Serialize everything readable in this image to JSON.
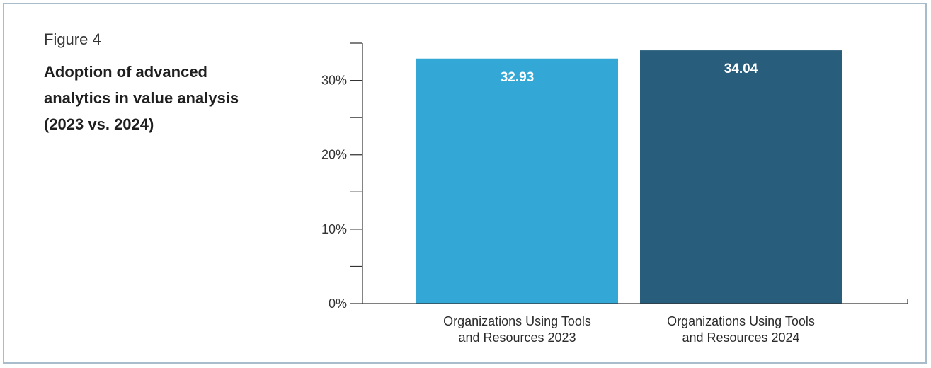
{
  "figure": {
    "label": "Figure 4",
    "title": "Adoption of advanced analytics in value analysis (2023 vs. 2024)"
  },
  "colors": {
    "frame_border": "#a9bccb",
    "bar_2023": "#33a8d6",
    "bar_2024": "#285d7c",
    "axis": "#333333"
  },
  "chart_data": {
    "type": "bar",
    "categories": [
      [
        "Organizations Using Tools",
        "and Resources 2023"
      ],
      [
        "Organizations Using Tools",
        "and Resources 2024"
      ]
    ],
    "values": [
      32.93,
      34.04
    ],
    "value_labels": [
      "32.93",
      "34.04"
    ],
    "bar_colors": [
      "#33a8d6",
      "#285d7c"
    ],
    "ylim": [
      0,
      35
    ],
    "y_ticks": [
      {
        "value": 0,
        "label": "0%"
      },
      {
        "value": 10,
        "label": "10%"
      },
      {
        "value": 20,
        "label": "20%"
      },
      {
        "value": 30,
        "label": "30%"
      }
    ],
    "y_minor_ticks": [
      5,
      15,
      25,
      35
    ],
    "grid": false,
    "xlabel": "",
    "ylabel": ""
  }
}
